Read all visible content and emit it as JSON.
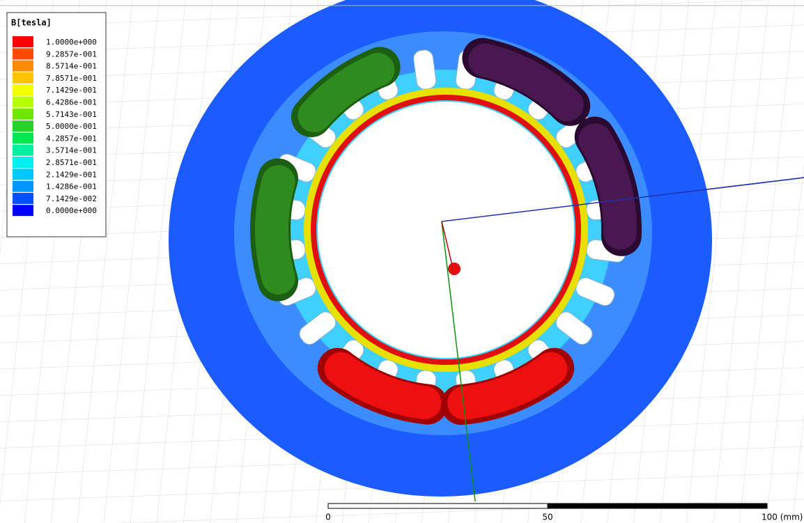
{
  "legend": {
    "title": "B[tesla]",
    "entries": [
      {
        "label": "1.0000e+000",
        "color": "#ff0000"
      },
      {
        "label": "9.2857e-001",
        "color": "#ff4a00"
      },
      {
        "label": "8.5714e-001",
        "color": "#ff8c00"
      },
      {
        "label": "7.8571e-001",
        "color": "#ffc400"
      },
      {
        "label": "7.1429e-001",
        "color": "#f4ff00"
      },
      {
        "label": "6.4286e-001",
        "color": "#b4ff00"
      },
      {
        "label": "5.7143e-001",
        "color": "#6ee600"
      },
      {
        "label": "5.0000e-001",
        "color": "#28d228"
      },
      {
        "label": "4.2857e-001",
        "color": "#00e650"
      },
      {
        "label": "3.5714e-001",
        "color": "#00f0a0"
      },
      {
        "label": "2.8571e-001",
        "color": "#00f0f0"
      },
      {
        "label": "2.1429e-001",
        "color": "#00c8ff"
      },
      {
        "label": "1.4286e-001",
        "color": "#0096ff"
      },
      {
        "label": "7.1429e-002",
        "color": "#0050ff"
      },
      {
        "label": "0.0000e+000",
        "color": "#0000ff"
      }
    ]
  },
  "scale_bar": {
    "labels": [
      "0",
      "50",
      "100 (mm)"
    ]
  }
}
